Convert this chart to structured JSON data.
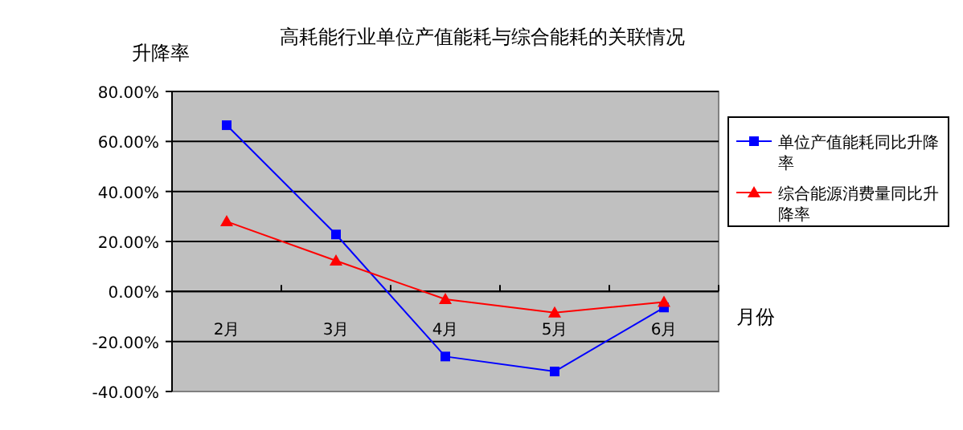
{
  "chart_data": {
    "type": "line",
    "title": "高耗能行业单位产值能耗与综合能耗的关联情况",
    "xlabel": "月份",
    "ylabel": "升降率",
    "categories": [
      "2月",
      "3月",
      "4月",
      "5月",
      "6月"
    ],
    "series": [
      {
        "name": "单位产值能耗同比升降率",
        "color": "#0000ff",
        "marker": "square",
        "values": [
          66.5,
          22.8,
          -26,
          -32,
          -6.4
        ]
      },
      {
        "name": "综合能源消费量同比升降率",
        "color": "#ff0000",
        "marker": "triangle",
        "values": [
          28,
          12.3,
          -3.1,
          -8.5,
          -4.2
        ]
      }
    ],
    "ylim": [
      -40,
      80
    ],
    "yticks": [
      {
        "value": -40,
        "label": "-40.00%"
      },
      {
        "value": -20,
        "label": "-20.00%"
      },
      {
        "value": 0,
        "label": "0.00%"
      },
      {
        "value": 20,
        "label": "20.00%"
      },
      {
        "value": 40,
        "label": "40.00%"
      },
      {
        "value": 60,
        "label": "60.00%"
      },
      {
        "value": 80,
        "label": "80.00%"
      }
    ],
    "grid": "y",
    "legend": "right"
  }
}
